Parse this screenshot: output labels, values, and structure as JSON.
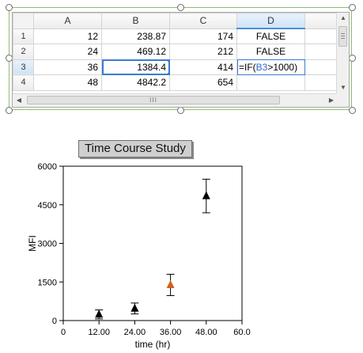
{
  "spreadsheet": {
    "column_headers": [
      "A",
      "B",
      "C",
      "D"
    ],
    "rows": [
      {
        "num": "1",
        "a": "12",
        "b": "238.87",
        "c": "174",
        "d": "FALSE"
      },
      {
        "num": "2",
        "a": "24",
        "b": "469.12",
        "c": "212",
        "d": "FALSE"
      },
      {
        "num": "3",
        "a": "36",
        "b": "1384.4",
        "c": "414",
        "d": ""
      },
      {
        "num": "4",
        "a": "48",
        "b": "4842.2",
        "c": "654",
        "d": ""
      }
    ],
    "formula": {
      "prefix": "=IF(",
      "ref": "B3",
      "suffix": ">1000)"
    },
    "hscroll_grip": "III",
    "colors": {
      "selection": "#3b7bd4",
      "frame": "#8fbf6e"
    }
  },
  "chart_data": {
    "type": "scatter",
    "title": "Time Course Study",
    "xlabel": "time (hr)",
    "ylabel": "MFI",
    "xlim": [
      0,
      60
    ],
    "ylim": [
      0,
      6000
    ],
    "x_ticks": [
      "0",
      "12.00",
      "24.00",
      "36.00",
      "48.00",
      "60.0"
    ],
    "y_ticks": [
      "0",
      "1500",
      "3000",
      "4500",
      "6000"
    ],
    "x_tick_values": [
      0,
      12,
      24,
      36,
      48,
      60
    ],
    "y_tick_values": [
      0,
      1500,
      3000,
      4500,
      6000
    ],
    "grid": false,
    "series": [
      {
        "x": [
          12,
          24,
          36,
          48
        ],
        "y": [
          238.87,
          469.12,
          1384.4,
          4842.2
        ],
        "error": [
          174,
          212,
          414,
          654
        ],
        "point_colors": [
          "#000000",
          "#000000",
          "#d0601c",
          "#000000"
        ],
        "marker": "triangle"
      }
    ]
  }
}
